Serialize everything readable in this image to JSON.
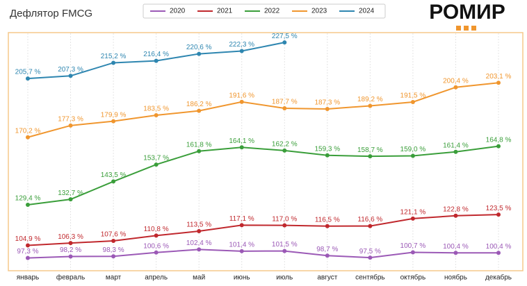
{
  "chart_data": {
    "type": "line",
    "title": "Дефлятор FMCG",
    "logo": "РОМИР",
    "categories": [
      "январь",
      "февраль",
      "март",
      "апрель",
      "май",
      "июнь",
      "июль",
      "август",
      "сентябрь",
      "октябрь",
      "ноябрь",
      "декабрь"
    ],
    "ylim": [
      90,
      233
    ],
    "series": [
      {
        "name": "2020",
        "color": "#9b59b6",
        "values": [
          97.3,
          98.2,
          98.3,
          100.6,
          102.4,
          101.4,
          101.5,
          98.7,
          97.5,
          100.7,
          100.4,
          100.4
        ],
        "value_labels": [
          "97,3 %",
          "98,2 %",
          "98,3 %",
          "100,6 %",
          "102,4 %",
          "101,4 %",
          "101,5 %",
          "98,7 %",
          "97,5 %",
          "100,7 %",
          "100,4 %",
          "100,4 %"
        ]
      },
      {
        "name": "2021",
        "color": "#c0282d",
        "values": [
          104.9,
          106.3,
          107.6,
          110.8,
          113.5,
          117.1,
          117.0,
          116.5,
          116.6,
          121.1,
          122.8,
          123.5
        ],
        "value_labels": [
          "104,9 %",
          "106,3 %",
          "107,6 %",
          "110,8 %",
          "113,5 %",
          "117,1 %",
          "117,0 %",
          "116,5 %",
          "116,6 %",
          "121,1 %",
          "122,8 %",
          "123,5 %"
        ]
      },
      {
        "name": "2022",
        "color": "#3a9e3a",
        "values": [
          129.4,
          132.7,
          143.5,
          153.7,
          161.8,
          164.1,
          162.2,
          159.3,
          158.7,
          159.0,
          161.4,
          164.8
        ],
        "value_labels": [
          "129,4 %",
          "132,7 %",
          "143,5 %",
          "153,7 %",
          "161,8 %",
          "164,1 %",
          "162,2 %",
          "159,3 %",
          "158,7 %",
          "159,0 %",
          "161,4 %",
          "164,8 %"
        ]
      },
      {
        "name": "2023",
        "color": "#f0962e",
        "values": [
          170.2,
          177.3,
          179.9,
          183.5,
          186.2,
          191.6,
          187.7,
          187.3,
          189.2,
          191.5,
          200.4,
          203.1
        ],
        "value_labels": [
          "170,2 %",
          "177,3 %",
          "179,9 %",
          "183,5 %",
          "186,2 %",
          "191,6 %",
          "187,7 %",
          "187,3 %",
          "189,2 %",
          "191,5 %",
          "200,4 %",
          "203,1 %"
        ]
      },
      {
        "name": "2024",
        "color": "#2e86b0",
        "values": [
          205.7,
          207.3,
          215.2,
          216.4,
          220.6,
          222.3,
          227.5,
          null,
          null,
          null,
          null,
          null
        ],
        "value_labels": [
          "205,7 %",
          "207,3 %",
          "215,2 %",
          "216,4 %",
          "220,6 %",
          "222,3 %",
          "227,5 %",
          null,
          null,
          null,
          null,
          null
        ]
      }
    ]
  }
}
